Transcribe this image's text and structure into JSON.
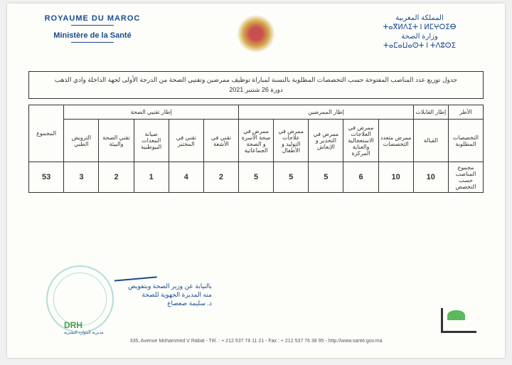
{
  "header": {
    "left": {
      "line1": "ROYAUME DU MAROC",
      "line2": "Ministère de la Santé"
    },
    "right": {
      "line1": "المملكة المغربية",
      "line2": "ⵜⴰⴳⵍⴷⵉⵜ ⵏ ⵍⵎⵖⵔⵉⴱ",
      "line3": "وزارة الصحة",
      "line4": "ⵜⴰⵎⴰⵡⴰⵙⵜ ⵏ ⵜⴷⵓⵙⵉ"
    }
  },
  "titleBox": {
    "main": "جدول توزيع عدد المناصب المفتوحة حسب التخصصات المطلوبة بالنسبة لمباراة توظيف ممرضين وتقنيي الصحة من الدرجة الأولى لجهة الداخلة وادي الذهب",
    "sub": "دورة 26 شتنبر 2021"
  },
  "table": {
    "topHeaders": {
      "frame": "الأطر",
      "midwife": "إطار القابلات",
      "nurses": "إطار الممرضين",
      "healthTech": "إطار تقنيي الصحة",
      "total": "المجموع"
    },
    "specHeaders": {
      "required": "التخصصات المطلوبة",
      "midwifery": "القبالة",
      "multi": "ممرض متعدد التخصصات",
      "emergency": "ممرض في العلاجات الاستعجالية والعناية المركزة",
      "anesthesia": "ممرض في التخدير و الإنعاش",
      "obstetrics": "ممرض في علاجات التوليد و الأطفال",
      "family": "ممرض في صحة الأسرة و الصحة الجماعاتية",
      "radiology": "تقني في الأشعة",
      "lab": "تقني في المختبر",
      "biomed": "صيانة المعدات البيوطبية",
      "envHealth": "تقني الصحة والبيئة",
      "kine": "الترويض الطبي"
    },
    "dataRow": {
      "label": "مجموع المناصب حسب التخصص",
      "midwifery": "10",
      "multi": "10",
      "emergency": "6",
      "anesthesia": "5",
      "obstetrics": "5",
      "family": "5",
      "radiology": "2",
      "lab": "4",
      "biomed": "1",
      "envHealth": "2",
      "kine": "3",
      "total": "53"
    }
  },
  "signature": {
    "line1": "بالنيابة عن وزير الصحة وبتفويض",
    "line2": "منه المديرة الجهوية للصحة",
    "line3": "د. سليمة صعصاع"
  },
  "logos": {
    "drh": "DRH",
    "drhSub": "مديرية الموارد البشرية"
  },
  "footer": "335, Avenue Mohammed V Rabat - Tél. : + 212 537 76 11 21 - Fax : + 212 537 76 38 95 - http://www.sante.gov.ma",
  "colors": {
    "primary": "#1a4b8e",
    "stamp": "#7fcac7",
    "green": "#5cb85c"
  }
}
